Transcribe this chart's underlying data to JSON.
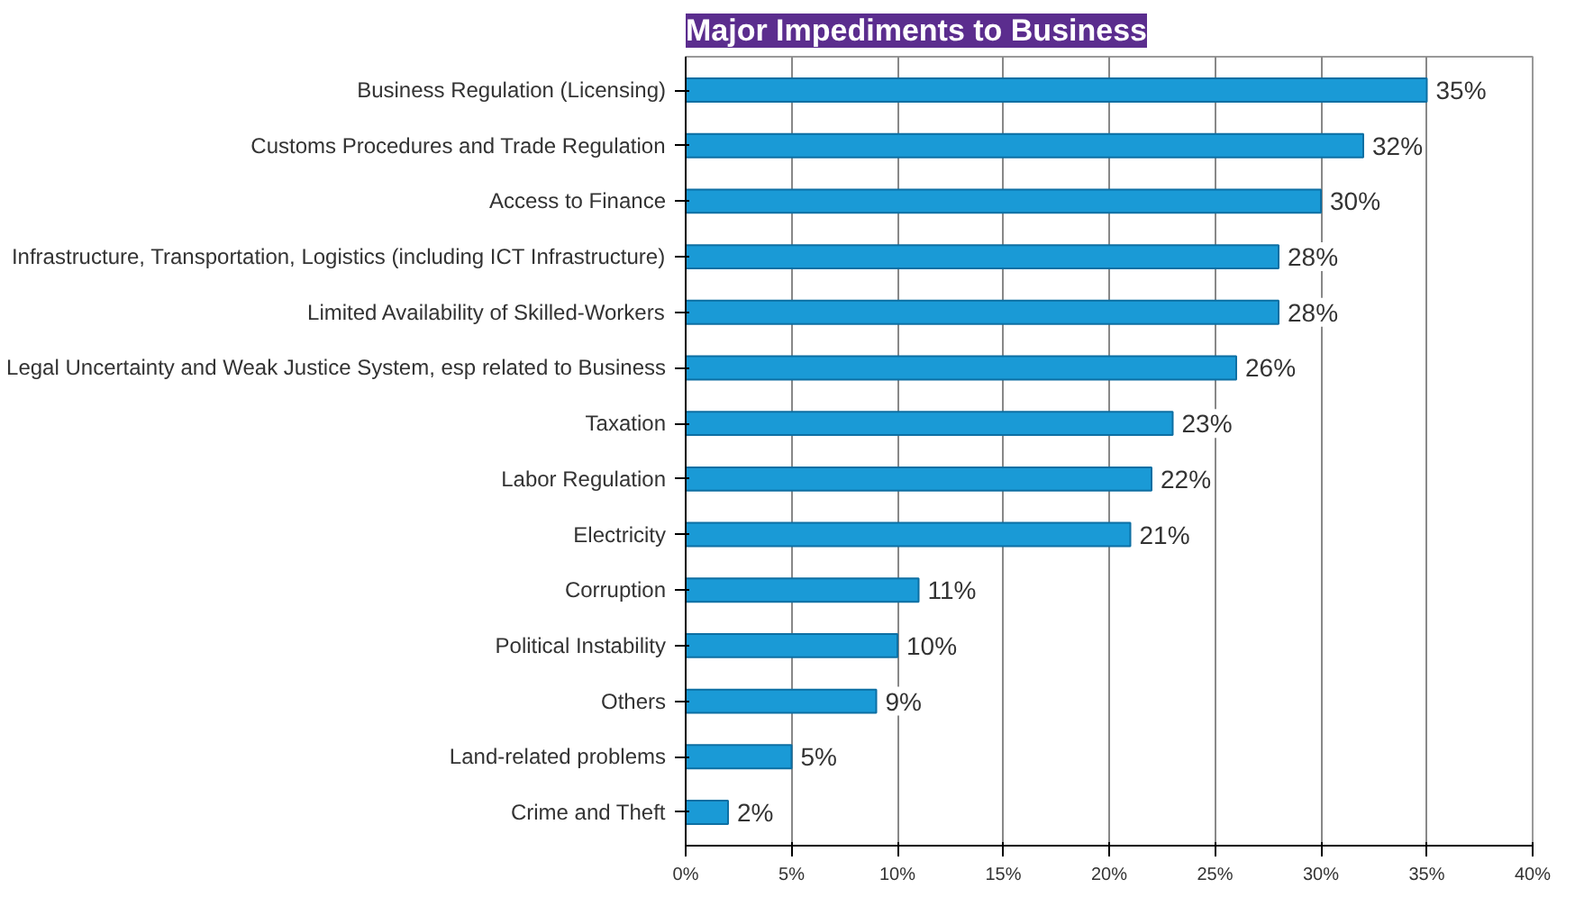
{
  "chart_data": {
    "type": "bar",
    "orientation": "horizontal",
    "title": "Major Impediments to Business",
    "categories": [
      "Business Regulation (Licensing)",
      "Customs Procedures and Trade Regulation",
      "Access to Finance",
      "Infrastructure, Transportation, Logistics (including ICT Infrastructure)",
      "Limited Availability of Skilled-Workers",
      "Legal Uncertainty and Weak Justice System, esp related to Business",
      "Taxation",
      "Labor Regulation",
      "Electricity",
      "Corruption",
      "Political Instability",
      "Others",
      "Land-related problems",
      "Crime and Theft"
    ],
    "values": [
      35,
      32,
      30,
      28,
      28,
      26,
      23,
      22,
      21,
      11,
      10,
      9,
      5,
      2
    ],
    "value_labels": [
      "35%",
      "32%",
      "30%",
      "28%",
      "28%",
      "26%",
      "23%",
      "22%",
      "21%",
      "11%",
      "10%",
      "9%",
      "5%",
      "2%"
    ],
    "color": "#1a9ad6",
    "xlim": [
      0,
      40
    ],
    "xticks": [
      {
        "value": 0,
        "label": "0%"
      },
      {
        "value": 5,
        "label": "5%"
      },
      {
        "value": 10,
        "label": "10%"
      },
      {
        "value": 15,
        "label": "15%"
      },
      {
        "value": 20,
        "label": "20%"
      },
      {
        "value": 25,
        "label": "25%"
      },
      {
        "value": 30,
        "label": "30%"
      },
      {
        "value": 35,
        "label": "35%"
      },
      {
        "value": 40,
        "label": "40%"
      }
    ],
    "grid": "x"
  }
}
